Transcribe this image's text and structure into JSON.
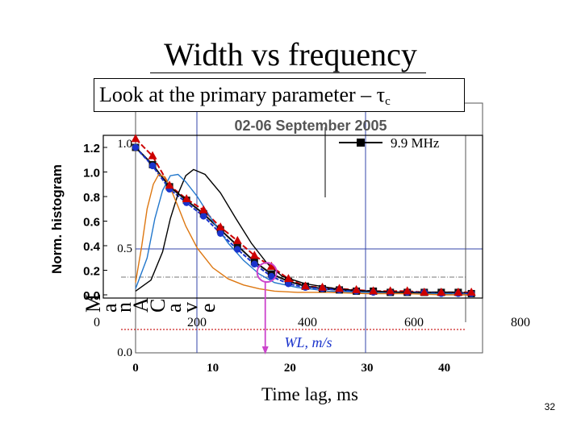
{
  "slide": {
    "title": "Width vs frequency",
    "callout_prefix": "Look at the primary parameter – τ",
    "callout_sub": "c",
    "page_number": "32"
  },
  "chart_data": [
    {
      "type": "line",
      "title": "02-06 September 2005",
      "xlabel": "Time lag, ms",
      "ylabel": "Norm. histogram",
      "x_ticks": [
        "0",
        "10",
        "20",
        "30",
        "40"
      ],
      "y_ticks": [
        "0.0",
        "0.2",
        "0.4",
        "0.6",
        "0.8",
        "1.0",
        "1.2"
      ],
      "xlim": [
        0,
        45
      ],
      "ylim": [
        0,
        1.3
      ],
      "grid": false,
      "legend": [
        "9.9 MHz"
      ],
      "series": [
        {
          "color": "#cc0000",
          "marker": "triangle",
          "x": [
            0,
            2.2,
            4.4,
            6.6,
            8.8,
            11,
            13.2,
            15.4,
            17.6,
            19.8,
            22,
            24.2,
            26.4,
            28.6,
            30.8,
            33,
            35.2,
            37.4,
            39.6,
            41.8,
            43.5
          ],
          "values": [
            1.27,
            1.13,
            0.89,
            0.78,
            0.69,
            0.55,
            0.44,
            0.32,
            0.23,
            0.13,
            0.07,
            0.06,
            0.05,
            0.04,
            0.03,
            0.03,
            0.03,
            0.02,
            0.02,
            0.02,
            0.02
          ]
        },
        {
          "color": "#111111",
          "marker": "square",
          "x": [
            0,
            2.2,
            4.4,
            6.6,
            8.8,
            11,
            13.2,
            15.4,
            17.6,
            19.8,
            22,
            24.2,
            26.4,
            28.6,
            30.8,
            33,
            35.2,
            37.4,
            39.6,
            41.8,
            43.5
          ],
          "values": [
            1.2,
            1.06,
            0.88,
            0.77,
            0.66,
            0.53,
            0.4,
            0.27,
            0.17,
            0.11,
            0.07,
            0.05,
            0.04,
            0.03,
            0.03,
            0.02,
            0.02,
            0.02,
            0.02,
            0.02,
            0.01
          ]
        },
        {
          "color": "#1a33cc",
          "marker": "circle",
          "x": [
            0,
            2.2,
            4.4,
            6.6,
            8.8,
            11,
            13.2,
            15.4,
            17.6,
            19.8,
            22,
            24.2,
            26.4,
            28.6,
            30.8,
            33,
            35.2,
            37.4,
            39.6,
            41.8,
            43.5
          ],
          "values": [
            1.2,
            1.05,
            0.86,
            0.75,
            0.64,
            0.5,
            0.37,
            0.25,
            0.15,
            0.09,
            0.06,
            0.05,
            0.04,
            0.03,
            0.02,
            0.02,
            0.02,
            0.02,
            0.01,
            0.01,
            0.01
          ]
        },
        {
          "color": "#000000",
          "marker": "none",
          "x": [
            0,
            2,
            3.5,
            4.5,
            5.5,
            6.5,
            7.5,
            9,
            11,
            13,
            15,
            17,
            19,
            22,
            26,
            30,
            35,
            40,
            43
          ],
          "values": [
            0.03,
            0.12,
            0.35,
            0.62,
            0.82,
            0.97,
            1.02,
            0.98,
            0.83,
            0.62,
            0.42,
            0.26,
            0.15,
            0.09,
            0.05,
            0.03,
            0.02,
            0.01,
            0.0
          ]
        },
        {
          "color": "#2277cc",
          "marker": "none",
          "x": [
            0,
            1.5,
            2.5,
            3.5,
            4.5,
            5.5,
            6.5,
            8,
            10,
            12,
            14,
            16,
            18,
            21,
            25,
            30,
            35,
            40,
            43
          ],
          "values": [
            0.05,
            0.3,
            0.62,
            0.85,
            0.97,
            0.98,
            0.92,
            0.8,
            0.6,
            0.42,
            0.28,
            0.17,
            0.1,
            0.06,
            0.03,
            0.02,
            0.01,
            0.01,
            0.0
          ]
        },
        {
          "color": "#dd7711",
          "marker": "none",
          "x": [
            0,
            0.8,
            1.5,
            2.3,
            3,
            3.8,
            4.5,
            5.5,
            6.5,
            8,
            10,
            12,
            14,
            16,
            18,
            21,
            25,
            30,
            35,
            40,
            43
          ],
          "values": [
            0.1,
            0.4,
            0.7,
            0.9,
            0.98,
            0.96,
            0.87,
            0.72,
            0.56,
            0.38,
            0.22,
            0.13,
            0.08,
            0.05,
            0.03,
            0.02,
            0.02,
            0.01,
            0.01,
            0.0,
            0.0
          ]
        }
      ],
      "highlight": {
        "x": 16.8,
        "y": 0.17
      },
      "arrow_x": 16.8
    },
    {
      "type": "line",
      "xlabel": "W_L, m/s",
      "x_ticks": [
        "0",
        "200",
        "400",
        "600",
        "800"
      ],
      "y_ticks": [
        "0.0",
        "0.5",
        "1.0"
      ],
      "xlim": [
        0,
        800
      ],
      "ylim": [
        0,
        1.0
      ]
    }
  ]
}
